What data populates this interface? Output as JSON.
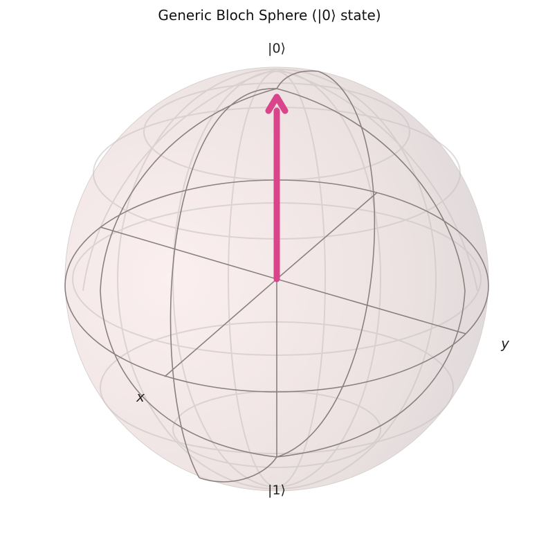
{
  "title": "Generic Bloch Sphere (|0⟩ state)",
  "labels": {
    "top": "|0⟩",
    "bottom": "|1⟩",
    "x_axis": "x",
    "y_axis": "y"
  },
  "state": {
    "name": "|0⟩",
    "vector": [
      0,
      0,
      1
    ]
  },
  "colors": {
    "sphere_fill": "#f5e6e8",
    "grid_line": "#8a8080",
    "vector": "#d9448a"
  }
}
